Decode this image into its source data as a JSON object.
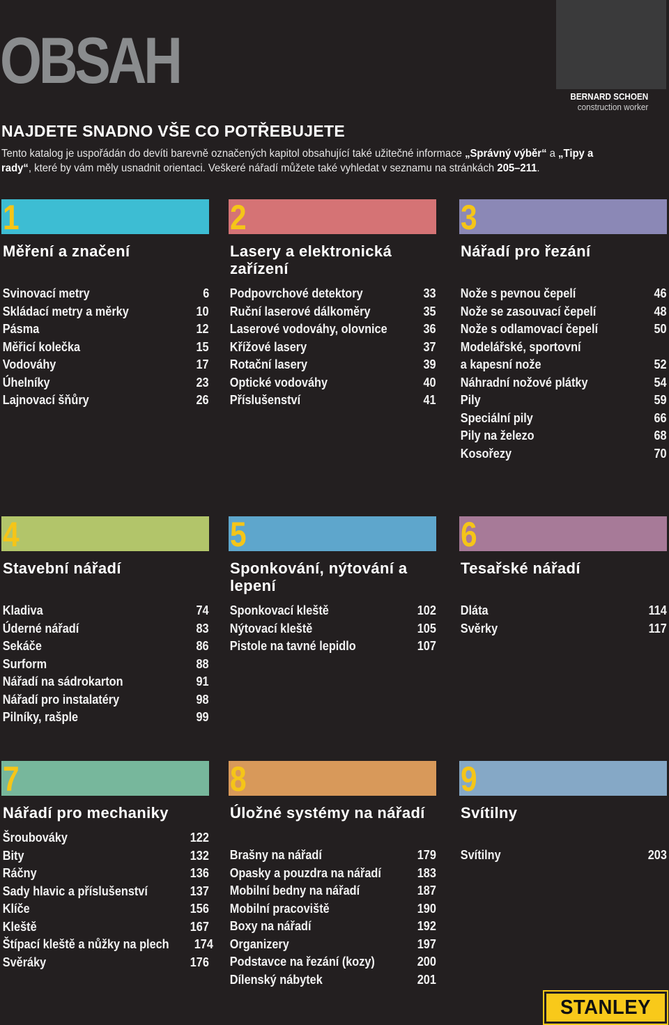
{
  "title": "OBSAH",
  "photo_caption": {
    "name": "BERNARD SCHOEN",
    "role": "construction worker"
  },
  "subtitle": "NAJDETE SNADNO VŠE CO POTŘEBUJETE",
  "intro": {
    "part1": "Tento katalog je uspořádán do devíti barevně označených kapitol obsahující také užitečné informace ",
    "highlight1": "„Správný výběr“",
    "part2": " a ",
    "highlight2": "„Tipy a rady“",
    "part3": ", které by vám měly usnadnit orientaci. Veškeré nářadí můžete také vyhledat v seznamu na stránkách ",
    "pages": "205–211",
    "part4": "."
  },
  "sections": [
    {
      "number": "1",
      "color": "#3dbdd3",
      "numColor": "#f5c518",
      "title": "Měření a značení",
      "items": [
        [
          "Svinovací metry",
          "6"
        ],
        [
          "Skládací metry a měrky",
          "10"
        ],
        [
          "Pásma",
          "12"
        ],
        [
          "Měřicí kolečka",
          "15"
        ],
        [
          "Vodováhy",
          "17"
        ],
        [
          "Úhelníky",
          "23"
        ],
        [
          "Lajnovací šňůry",
          "26"
        ]
      ]
    },
    {
      "number": "2",
      "color": "#d57375",
      "numColor": "#f5c518",
      "title": "Lasery a elektronická zařízení",
      "items": [
        [
          "Podpovrchové detektory",
          "33"
        ],
        [
          "Ruční laserové dálkoměry",
          "35"
        ],
        [
          "Laserové vodováhy, olovnice",
          "36"
        ],
        [
          "Křížové lasery",
          "37"
        ],
        [
          "Rotační lasery",
          "39"
        ],
        [
          "Optické vodováhy",
          "40"
        ],
        [
          "Příslušenství",
          "41"
        ]
      ]
    },
    {
      "number": "3",
      "color": "#8b88b6",
      "numColor": "#f5c518",
      "title": "Nářadí pro řezání",
      "items": [
        [
          "Nože s pevnou čepelí",
          "46"
        ],
        [
          "Nože se zasouvací čepelí",
          "48"
        ],
        [
          "Nože s odlamovací čepelí",
          "50"
        ],
        [
          "Modelářské, sportovní",
          ""
        ],
        [
          "a kapesní nože",
          "52"
        ],
        [
          "Náhradní nožové plátky",
          "54"
        ],
        [
          "Pily",
          "59"
        ],
        [
          "Speciální pily",
          "66"
        ],
        [
          "Pily na železo",
          "68"
        ],
        [
          "Kosořezy",
          "70"
        ]
      ]
    },
    {
      "number": "4",
      "color": "#b2c56a",
      "numColor": "#f5c518",
      "title": "Stavební nářadí",
      "items": [
        [
          "Kladiva",
          "74"
        ],
        [
          "Úderné nářadí",
          "83"
        ],
        [
          "Sekáče",
          "86"
        ],
        [
          "Surform",
          "88"
        ],
        [
          "Nářadí na sádrokarton",
          "91"
        ],
        [
          "Nářadí pro instalatéry",
          "98"
        ],
        [
          "Pilníky, rašple",
          "99"
        ]
      ]
    },
    {
      "number": "5",
      "color": "#5ea6cc",
      "numColor": "#f5c518",
      "title": "Sponkování, nýtování a lepení",
      "items": [
        [
          "Sponkovací kleště",
          "102"
        ],
        [
          "Nýtovací kleště",
          "105"
        ],
        [
          "Pistole na tavné lepidlo",
          "107"
        ]
      ]
    },
    {
      "number": "6",
      "color": "#a77a98",
      "numColor": "#f5c518",
      "title": "Tesařské nářadí",
      "items": [
        [
          "Dláta",
          "114"
        ],
        [
          "Svěrky",
          "117"
        ]
      ]
    },
    {
      "number": "7",
      "color": "#77b79c",
      "numColor": "#f5c518",
      "title": "Nářadí pro mechaniky",
      "items": [
        [
          "Šroubováky",
          "122"
        ],
        [
          "Bity",
          "132"
        ],
        [
          "Ráčny",
          "136"
        ],
        [
          "Sady hlavic a příslušenství",
          "137"
        ],
        [
          "Klíče",
          "156"
        ],
        [
          "Kleště",
          "167"
        ],
        [
          "Štípací kleště a nůžky na plech",
          "174"
        ],
        [
          "Svěráky",
          "176"
        ]
      ]
    },
    {
      "number": "8",
      "color": "#d8995a",
      "numColor": "#f5c518",
      "title": "Úložné systémy na nářadí",
      "items": [
        [
          "Brašny na nářadí",
          "179"
        ],
        [
          "Opasky a pouzdra na nářadí",
          "183"
        ],
        [
          "Mobilní bedny na nářadí",
          "187"
        ],
        [
          "Mobilní pracoviště",
          "190"
        ],
        [
          "Boxy na nářadí",
          "192"
        ],
        [
          "Organizery",
          "197"
        ],
        [
          "Podstavce na řezání (kozy)",
          "200"
        ],
        [
          "Dílenský nábytek",
          "201"
        ]
      ]
    },
    {
      "number": "9",
      "color": "#85a8c6",
      "numColor": "#f5c518",
      "title": "Svítilny",
      "items": [
        [
          "Svítilny",
          "203"
        ]
      ]
    }
  ],
  "logo_text": "STANLEY"
}
